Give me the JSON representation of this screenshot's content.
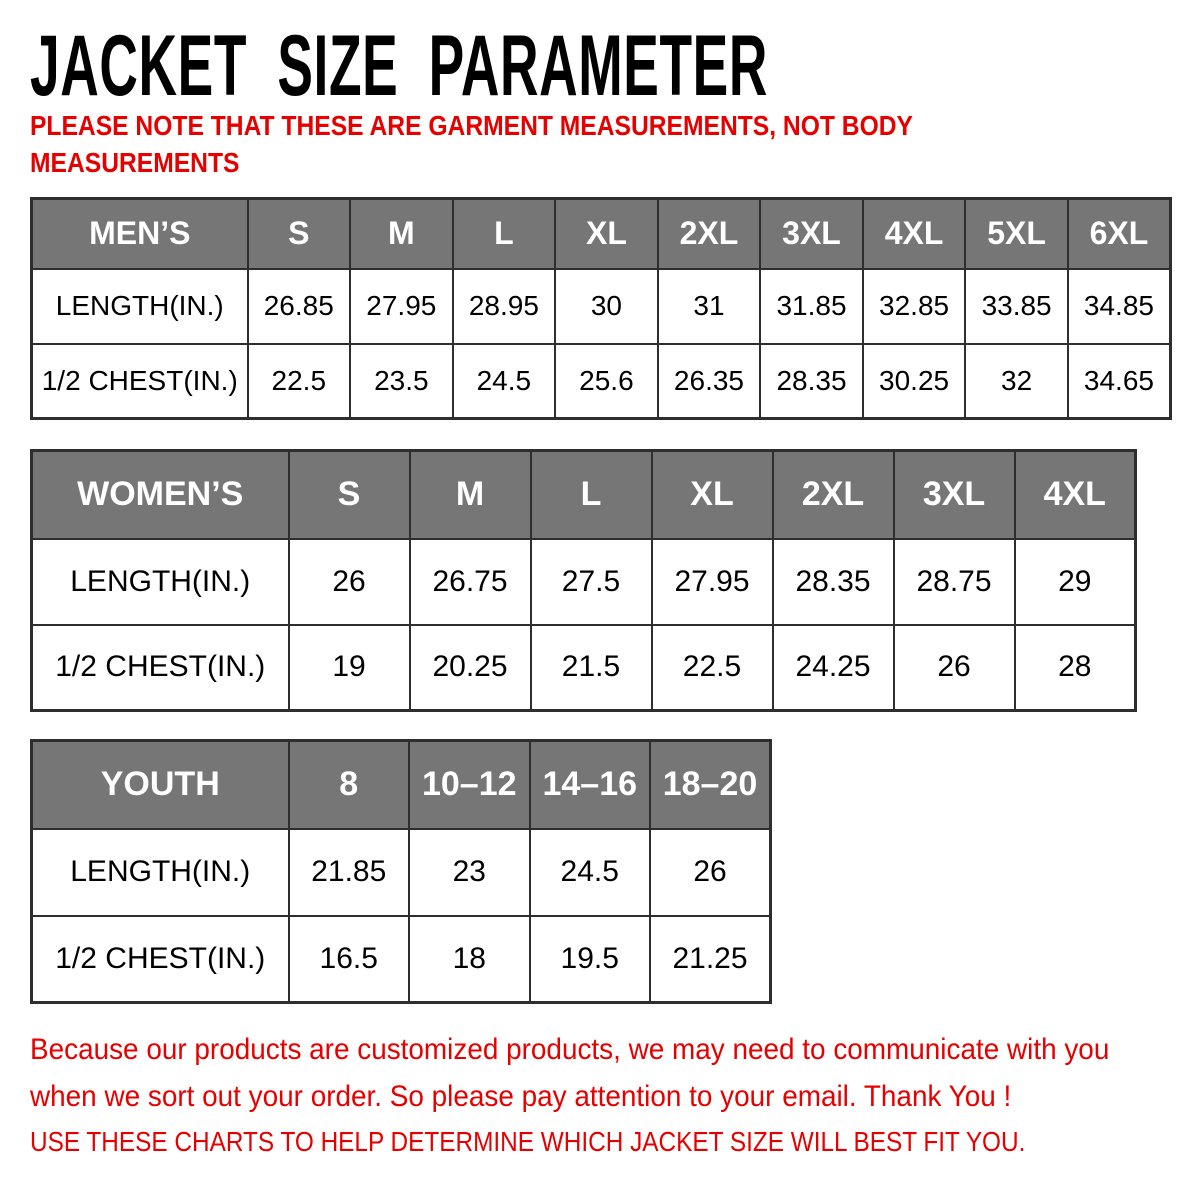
{
  "header": {
    "title": "JACKET SIZE PARAMETER",
    "note_lines": [
      "PLEASE NOTE THAT THESE ARE GARMENT MEASUREMENTS, NOT BODY",
      "MEASUREMENTS"
    ]
  },
  "tables": [
    {
      "name": "mens",
      "header": [
        "MEN’S",
        "S",
        "M",
        "L",
        "XL",
        "2XL",
        "3XL",
        "4XL",
        "5XL",
        "6XL"
      ],
      "rows": [
        {
          "label": "LENGTH(IN.)",
          "values": [
            "26.85",
            "27.95",
            "28.95",
            "30",
            "31",
            "31.85",
            "32.85",
            "33.85",
            "34.85"
          ]
        },
        {
          "label": "1/2 CHEST(IN.)",
          "values": [
            "22.5",
            "23.5",
            "24.5",
            "25.6",
            "26.35",
            "28.35",
            "30.25",
            "32",
            "34.65"
          ]
        }
      ]
    },
    {
      "name": "womens",
      "header": [
        "WOMEN’S",
        "S",
        "M",
        "L",
        "XL",
        "2XL",
        "3XL",
        "4XL"
      ],
      "rows": [
        {
          "label": "LENGTH(IN.)",
          "values": [
            "26",
            "26.75",
            "27.5",
            "27.95",
            "28.35",
            "28.75",
            "29"
          ]
        },
        {
          "label": "1/2 CHEST(IN.)",
          "values": [
            "19",
            "20.25",
            "21.5",
            "22.5",
            "24.25",
            "26",
            "28"
          ]
        }
      ]
    },
    {
      "name": "youth",
      "header": [
        "YOUTH",
        "8",
        "10–12",
        "14–16",
        "18–20"
      ],
      "rows": [
        {
          "label": "LENGTH(IN.)",
          "values": [
            "21.85",
            "23",
            "24.5",
            "26"
          ]
        },
        {
          "label": "1/2 CHEST(IN.)",
          "values": [
            "16.5",
            "18",
            "19.5",
            "21.25"
          ]
        }
      ]
    }
  ],
  "footer": {
    "paragraph_lines": [
      "Because our products are customized products, we may need to communicate with you",
      "when we sort out your order. So please pay attention to your email. Thank You !"
    ],
    "usage_line": "USE THESE CHARTS TO HELP DETERMINE WHICH JACKET SIZE WILL BEST FIT YOU."
  },
  "colors": {
    "accent_red": "#e60000",
    "header_gray": "#767676",
    "border_dark": "#2e2e2e",
    "text_black": "#000000",
    "background": "#ffffff"
  }
}
